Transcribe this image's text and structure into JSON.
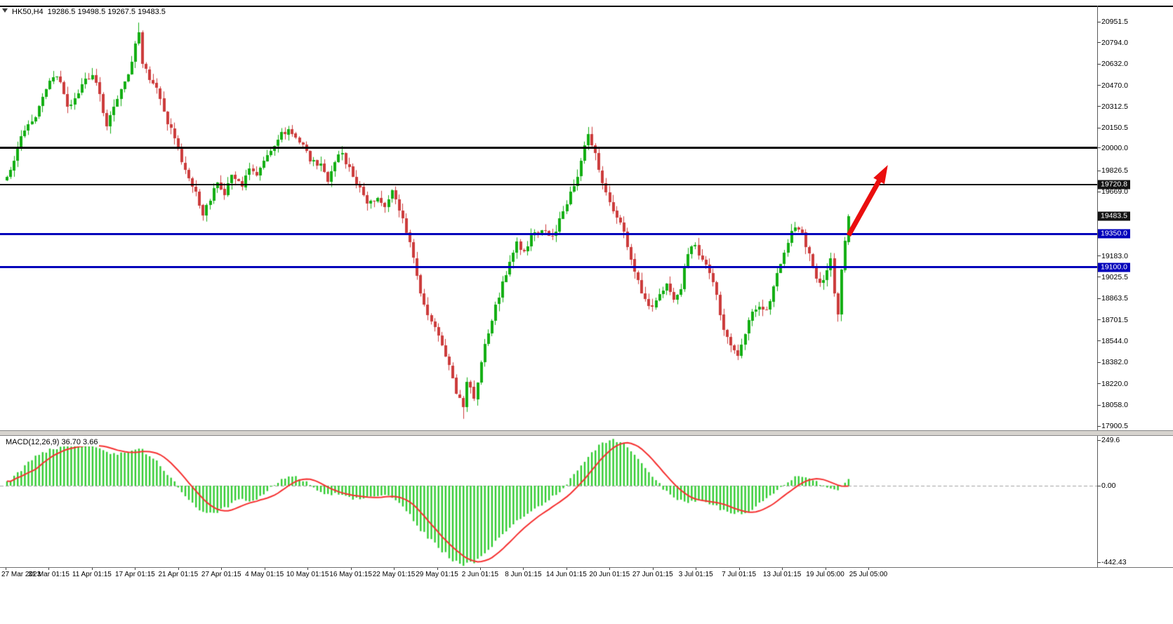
{
  "header": {
    "symbol": "HK50,H4",
    "ohlc": "19286.5 19498.5 19267.5 19483.5"
  },
  "colors": {
    "background": "#ffffff",
    "bull": "#12ae12",
    "bear": "#cc3b3b",
    "macd_bar": "#33cc33",
    "macd_signal": "#f53030",
    "macd_zero_line": "#a0a0a0",
    "level_blue": "#0000bb",
    "level_black": "#000000",
    "price_box_dark": "#141414",
    "arrow": "#ea0e0e",
    "text": "#000000"
  },
  "chart_data": {
    "type": "candlestick",
    "symbol": "HK50",
    "timeframe": "H4",
    "title": "HK50,H4",
    "last_bar": {
      "open": 19286.5,
      "high": 19498.5,
      "low": 19267.5,
      "close": 19483.5
    },
    "num_bars": 237,
    "close_waypoints": [
      [
        0,
        19780
      ],
      [
        2,
        19900
      ],
      [
        5,
        20150
      ],
      [
        8,
        20230
      ],
      [
        11,
        20450
      ],
      [
        13,
        20550
      ],
      [
        15,
        20480
      ],
      [
        17,
        20300
      ],
      [
        19,
        20380
      ],
      [
        22,
        20500
      ],
      [
        24,
        20560
      ],
      [
        26,
        20380
      ],
      [
        28,
        20150
      ],
      [
        30,
        20320
      ],
      [
        33,
        20500
      ],
      [
        35,
        20650
      ],
      [
        37,
        20880
      ],
      [
        38,
        20650
      ],
      [
        40,
        20520
      ],
      [
        43,
        20380
      ],
      [
        45,
        20200
      ],
      [
        48,
        19980
      ],
      [
        50,
        19820
      ],
      [
        53,
        19680
      ],
      [
        55,
        19500
      ],
      [
        57,
        19620
      ],
      [
        59,
        19760
      ],
      [
        61,
        19660
      ],
      [
        63,
        19780
      ],
      [
        66,
        19720
      ],
      [
        68,
        19850
      ],
      [
        70,
        19780
      ],
      [
        73,
        19960
      ],
      [
        76,
        20080
      ],
      [
        79,
        20140
      ],
      [
        82,
        20060
      ],
      [
        85,
        19920
      ],
      [
        88,
        19860
      ],
      [
        90,
        19750
      ],
      [
        92,
        19900
      ],
      [
        94,
        19960
      ],
      [
        96,
        19840
      ],
      [
        98,
        19740
      ],
      [
        101,
        19560
      ],
      [
        104,
        19640
      ],
      [
        106,
        19560
      ],
      [
        108,
        19700
      ],
      [
        110,
        19550
      ],
      [
        112,
        19380
      ],
      [
        114,
        19150
      ],
      [
        116,
        18900
      ],
      [
        118,
        18760
      ],
      [
        120,
        18640
      ],
      [
        122,
        18520
      ],
      [
        124,
        18360
      ],
      [
        126,
        18150
      ],
      [
        128,
        18060
      ],
      [
        129,
        18230
      ],
      [
        131,
        18120
      ],
      [
        133,
        18380
      ],
      [
        135,
        18620
      ],
      [
        137,
        18800
      ],
      [
        139,
        18980
      ],
      [
        141,
        19150
      ],
      [
        143,
        19280
      ],
      [
        145,
        19220
      ],
      [
        147,
        19330
      ],
      [
        150,
        19400
      ],
      [
        153,
        19310
      ],
      [
        156,
        19540
      ],
      [
        158,
        19650
      ],
      [
        160,
        19800
      ],
      [
        162,
        20040
      ],
      [
        163,
        20100
      ],
      [
        165,
        19950
      ],
      [
        167,
        19750
      ],
      [
        169,
        19600
      ],
      [
        171,
        19480
      ],
      [
        173,
        19350
      ],
      [
        175,
        19180
      ],
      [
        177,
        18980
      ],
      [
        179,
        18850
      ],
      [
        181,
        18780
      ],
      [
        183,
        18900
      ],
      [
        185,
        18980
      ],
      [
        187,
        18850
      ],
      [
        189,
        18960
      ],
      [
        191,
        19200
      ],
      [
        193,
        19280
      ],
      [
        195,
        19140
      ],
      [
        197,
        19050
      ],
      [
        199,
        18880
      ],
      [
        201,
        18620
      ],
      [
        203,
        18520
      ],
      [
        205,
        18440
      ],
      [
        207,
        18620
      ],
      [
        209,
        18750
      ],
      [
        211,
        18820
      ],
      [
        213,
        18780
      ],
      [
        215,
        18950
      ],
      [
        217,
        19150
      ],
      [
        219,
        19300
      ],
      [
        221,
        19420
      ],
      [
        223,
        19340
      ],
      [
        225,
        19200
      ],
      [
        227,
        19020
      ],
      [
        229,
        18980
      ],
      [
        231,
        19150
      ],
      [
        232,
        18900
      ],
      [
        233,
        18740
      ],
      [
        234,
        19080
      ],
      [
        235,
        19300
      ],
      [
        236,
        19483.5
      ]
    ],
    "extremes": {
      "highest": [
        37,
        20945
      ],
      "lowest": [
        128,
        17955
      ]
    },
    "price_axis": {
      "top": "20951.5",
      "bottom": "17900.5",
      "ticks": [
        "20951.5",
        "20794.0",
        "20632.0",
        "20470.0",
        "20312.5",
        "20150.5",
        "20000.0",
        "19826.5",
        "19669.0",
        "19183.0",
        "19025.5",
        "18863.5",
        "18701.5",
        "18544.0",
        "18382.0",
        "18220.0",
        "18058.0",
        "17900.5"
      ],
      "boxed": [
        {
          "text": "19720.8",
          "bg": "#141414"
        },
        {
          "text": "19483.5",
          "bg": "#141414"
        },
        {
          "text": "19350.0",
          "bg": "#0000bb"
        },
        {
          "text": "19100.0",
          "bg": "#0000bb"
        }
      ]
    },
    "levels": [
      {
        "id": "resistance-line-20000",
        "value": 20000.0,
        "color": "#000000",
        "width": 3
      },
      {
        "id": "resistance-line-19720",
        "value": 19720.8,
        "color": "#000000",
        "width": 2
      },
      {
        "id": "support-line-19350",
        "value": 19350.0,
        "color": "#0000bb",
        "width": 3
      },
      {
        "id": "support-line-19100",
        "value": 19100.0,
        "color": "#0000bb",
        "width": 3
      }
    ],
    "time_axis": [
      "27 Mar 2023",
      "31 Mar 01:15",
      "11 Apr 01:15",
      "17 Apr 01:15",
      "21 Apr 01:15",
      "27 Apr 01:15",
      "4 May 01:15",
      "10 May 01:15",
      "16 May 01:15",
      "22 May 01:15",
      "29 May 01:15",
      "2 Jun 01:15",
      "8 Jun 01:15",
      "14 Jun 01:15",
      "20 Jun 01:15",
      "27 Jun 01:15",
      "3 Jul 01:15",
      "7 Jul 01:15",
      "13 Jul 01:15",
      "19 Jul 05:00",
      "25 Jul 05:00"
    ],
    "macd": {
      "label": "MACD(12,26,9) 36.70 3.66",
      "params": "12,26,9",
      "value": 36.7,
      "signal": 3.66,
      "axis": {
        "max": "249.6",
        "zero": "0.00",
        "min": "-442.43"
      },
      "waypoints": [
        [
          0,
          15
        ],
        [
          4,
          90
        ],
        [
          8,
          160
        ],
        [
          12,
          195
        ],
        [
          16,
          215
        ],
        [
          20,
          228
        ],
        [
          24,
          215
        ],
        [
          28,
          185
        ],
        [
          31,
          175
        ],
        [
          34,
          190
        ],
        [
          38,
          195
        ],
        [
          41,
          150
        ],
        [
          44,
          90
        ],
        [
          47,
          20
        ],
        [
          50,
          -60
        ],
        [
          53,
          -120
        ],
        [
          56,
          -155
        ],
        [
          59,
          -140
        ],
        [
          62,
          -110
        ],
        [
          65,
          -70
        ],
        [
          68,
          -85
        ],
        [
          71,
          -60
        ],
        [
          74,
          -15
        ],
        [
          77,
          35
        ],
        [
          80,
          55
        ],
        [
          83,
          30
        ],
        [
          86,
          -15
        ],
        [
          89,
          -55
        ],
        [
          92,
          -40
        ],
        [
          95,
          -55
        ],
        [
          98,
          -75
        ],
        [
          101,
          -70
        ],
        [
          104,
          -55
        ],
        [
          107,
          -60
        ],
        [
          110,
          -95
        ],
        [
          113,
          -160
        ],
        [
          116,
          -240
        ],
        [
          119,
          -300
        ],
        [
          122,
          -355
        ],
        [
          125,
          -405
        ],
        [
          128,
          -435
        ],
        [
          131,
          -420
        ],
        [
          134,
          -370
        ],
        [
          137,
          -310
        ],
        [
          140,
          -245
        ],
        [
          143,
          -190
        ],
        [
          146,
          -150
        ],
        [
          149,
          -115
        ],
        [
          152,
          -75
        ],
        [
          155,
          -30
        ],
        [
          158,
          35
        ],
        [
          161,
          110
        ],
        [
          164,
          185
        ],
        [
          167,
          230
        ],
        [
          170,
          248
        ],
        [
          173,
          225
        ],
        [
          176,
          160
        ],
        [
          179,
          95
        ],
        [
          182,
          30
        ],
        [
          185,
          -35
        ],
        [
          188,
          -80
        ],
        [
          191,
          -95
        ],
        [
          194,
          -85
        ],
        [
          197,
          -95
        ],
        [
          200,
          -125
        ],
        [
          203,
          -150
        ],
        [
          206,
          -155
        ],
        [
          209,
          -125
        ],
        [
          212,
          -85
        ],
        [
          215,
          -45
        ],
        [
          218,
          5
        ],
        [
          221,
          45
        ],
        [
          224,
          55
        ],
        [
          227,
          25
        ],
        [
          230,
          -10
        ],
        [
          233,
          -25
        ],
        [
          236,
          36.7
        ]
      ]
    },
    "annotation": {
      "type": "up-arrow",
      "color": "#ea0e0e",
      "from": {
        "bar": 236,
        "price": 19340
      },
      "to": {
        "bar": 247,
        "price": 19870
      }
    }
  }
}
